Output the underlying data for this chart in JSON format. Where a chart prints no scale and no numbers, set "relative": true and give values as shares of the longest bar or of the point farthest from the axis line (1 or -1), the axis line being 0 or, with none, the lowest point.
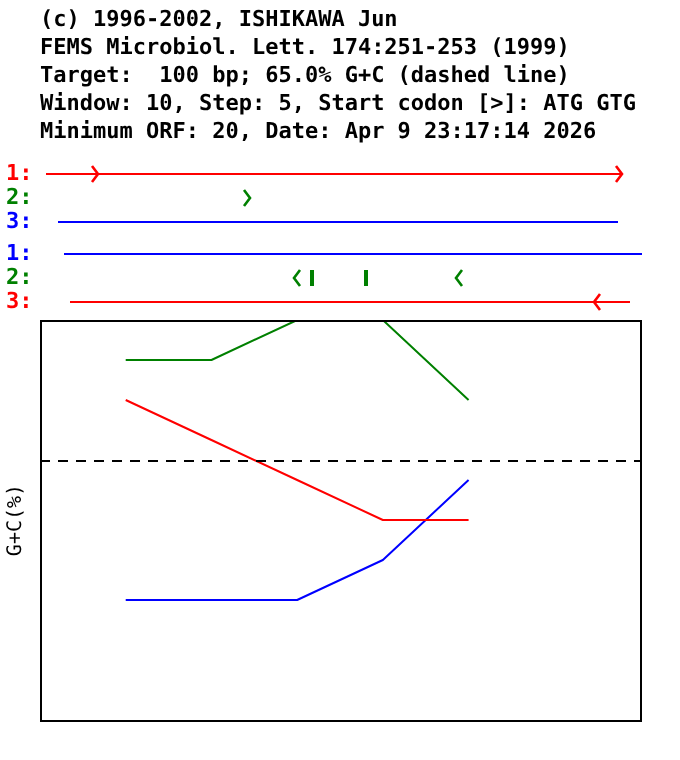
{
  "chart_data": {
    "type": "line",
    "title": "(c) 1996-2002, ISHIKAWA Jun",
    "subtitle": "FEMS Microbiol. Lett. 174:251-253 (1999)",
    "ylabel": "G+C(%)",
    "annotations": [
      "Target:  100 bp; 65.0% G+C (dashed line)",
      "Window: 10, Step: 5, Start codon [>]: ATG GTG",
      "Minimum ORF: 20, Date: Apr 9 23:17:14 2026",
      "1:",
      "2:",
      "3:",
      "1:",
      "2:",
      "3:"
    ],
    "categories": [
      null,
      null,
      null,
      null,
      null,
      null,
      null,
      null
    ],
    "relative": true,
    "series": [
      {
        "color": "#ff0000",
        "values": [
          null,
          0.8,
          0.7,
          0.6,
          0.5,
          0.5,
          null,
          null
        ]
      },
      {
        "color": "#008000",
        "values": [
          null,
          0.9,
          0.9,
          1,
          1,
          0.8,
          null,
          null
        ]
      },
      {
        "color": "#0000ff",
        "values": [
          null,
          0.3,
          0.3,
          0.3,
          0.4,
          0.6,
          null,
          null
        ]
      }
    ],
    "ref_lines": [
      {
        "axis": "y",
        "value": 0.65,
        "color": "#000000",
        "line_style": "dashed"
      }
    ],
    "legend": false,
    "marker": "none",
    "line_style": "solid"
  }
}
